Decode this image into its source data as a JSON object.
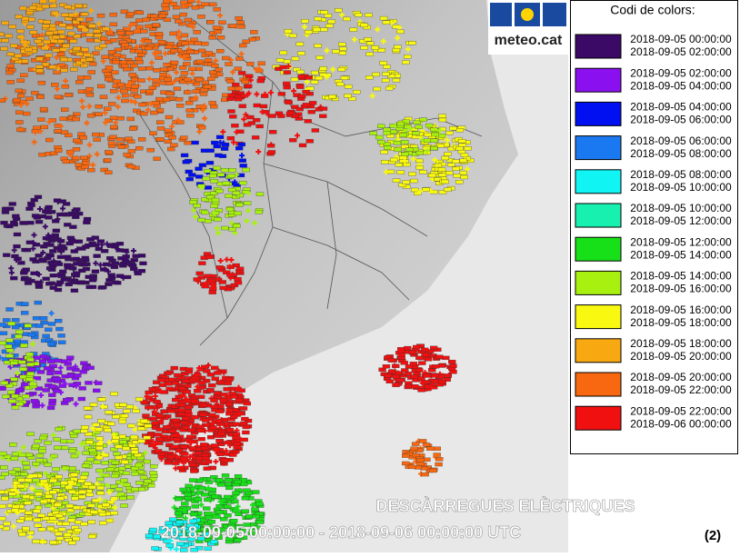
{
  "logo": {
    "text": "meteo.cat"
  },
  "legend": {
    "title": "Codi de colors:",
    "items": [
      {
        "color": "#3a0a66",
        "start": "2018-09-05 00:00:00",
        "end": "2018-09-05 02:00:00"
      },
      {
        "color": "#8a10f0",
        "start": "2018-09-05 02:00:00",
        "end": "2018-09-05 04:00:00"
      },
      {
        "color": "#0010f0",
        "start": "2018-09-05 04:00:00",
        "end": "2018-09-05 06:00:00"
      },
      {
        "color": "#1a78f0",
        "start": "2018-09-05 06:00:00",
        "end": "2018-09-05 08:00:00"
      },
      {
        "color": "#10f4f4",
        "start": "2018-09-05 08:00:00",
        "end": "2018-09-05 10:00:00"
      },
      {
        "color": "#18f0b0",
        "start": "2018-09-05 10:00:00",
        "end": "2018-09-05 12:00:00"
      },
      {
        "color": "#18e018",
        "start": "2018-09-05 12:00:00",
        "end": "2018-09-05 14:00:00"
      },
      {
        "color": "#a8f010",
        "start": "2018-09-05 14:00:00",
        "end": "2018-09-05 16:00:00"
      },
      {
        "color": "#f8f810",
        "start": "2018-09-05 16:00:00",
        "end": "2018-09-05 18:00:00"
      },
      {
        "color": "#f8a810",
        "start": "2018-09-05 18:00:00",
        "end": "2018-09-05 20:00:00"
      },
      {
        "color": "#f86810",
        "start": "2018-09-05 20:00:00",
        "end": "2018-09-05 22:00:00"
      },
      {
        "color": "#f01010",
        "start": "2018-09-05 22:00:00",
        "end": "2018-09-06 00:00:00"
      }
    ]
  },
  "map": {
    "title": "DESCÀRREGUES ELÈCTRIQUES",
    "period": "2018-09-05 00:00:00 - 2018-09-06 00:00:00 UTC"
  },
  "label": "(2)"
}
